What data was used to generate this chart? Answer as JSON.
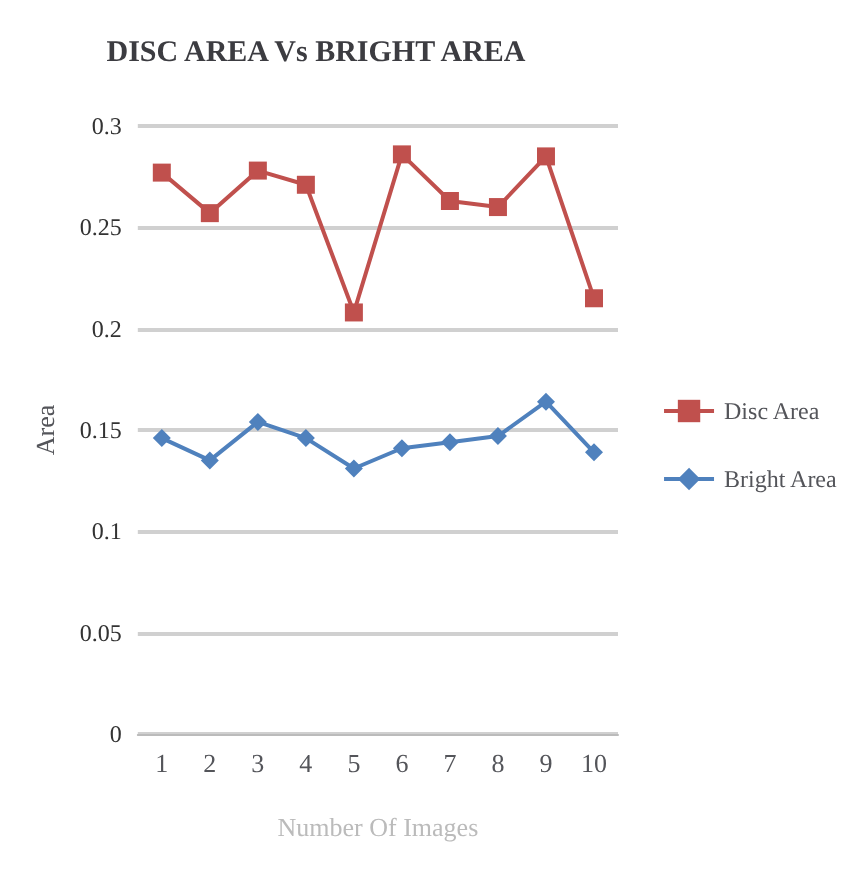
{
  "chart_data": {
    "type": "line",
    "title": "DISC AREA Vs BRIGHT AREA",
    "xlabel": "Number Of Images",
    "ylabel": "Area",
    "categories": [
      "1",
      "2",
      "3",
      "4",
      "5",
      "6",
      "7",
      "8",
      "9",
      "10"
    ],
    "series": [
      {
        "name": "Disc Area",
        "color": "#c0504d",
        "marker": "square",
        "values": [
          0.277,
          0.257,
          0.278,
          0.271,
          0.208,
          0.286,
          0.263,
          0.26,
          0.285,
          0.215
        ]
      },
      {
        "name": "Bright Area",
        "color": "#4f81bd",
        "marker": "diamond",
        "values": [
          0.146,
          0.135,
          0.154,
          0.146,
          0.131,
          0.141,
          0.144,
          0.147,
          0.164,
          0.139
        ]
      }
    ],
    "ylim": [
      0,
      0.3
    ],
    "yticks": [
      0,
      0.05,
      0.1,
      0.15,
      0.2,
      0.25,
      0.3
    ],
    "grid": "y",
    "legend": "right"
  }
}
